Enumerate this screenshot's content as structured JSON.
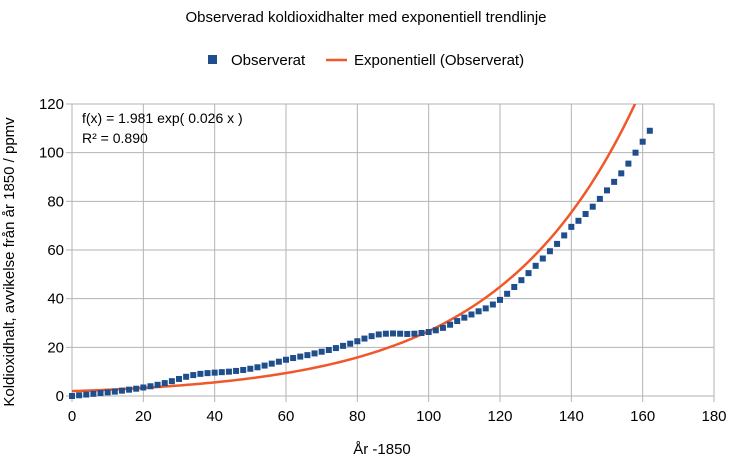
{
  "chart_data": {
    "type": "scatter",
    "title": "Observerad koldioxidhalter med exponentiell trendlinje",
    "xlabel": "År -1850",
    "ylabel": "Koldioxidhalt, avvikelse från år 1850 / ppmv",
    "xlim": [
      0,
      180
    ],
    "ylim": [
      0,
      120
    ],
    "x_ticks": [
      "0",
      "20",
      "40",
      "60",
      "80",
      "100",
      "120",
      "140",
      "160",
      "180"
    ],
    "y_ticks": [
      "0",
      "20",
      "40",
      "60",
      "80",
      "100",
      "120"
    ],
    "grid": true,
    "legend_position": "top",
    "series": [
      {
        "name": "Observerat",
        "kind": "scatter",
        "marker": "square",
        "color": "#1f4e8c",
        "points": [
          [
            0,
            0.0
          ],
          [
            2,
            0.3
          ],
          [
            4,
            0.6
          ],
          [
            6,
            0.9
          ],
          [
            8,
            1.2
          ],
          [
            10,
            1.5
          ],
          [
            12,
            1.8
          ],
          [
            14,
            2.2
          ],
          [
            16,
            2.6
          ],
          [
            18,
            3.0
          ],
          [
            20,
            3.5
          ],
          [
            22,
            4.0
          ],
          [
            24,
            4.6
          ],
          [
            26,
            5.3
          ],
          [
            28,
            6.1
          ],
          [
            30,
            7.0
          ],
          [
            32,
            7.9
          ],
          [
            34,
            8.6
          ],
          [
            36,
            9.1
          ],
          [
            38,
            9.4
          ],
          [
            40,
            9.6
          ],
          [
            42,
            9.8
          ],
          [
            44,
            10.0
          ],
          [
            46,
            10.3
          ],
          [
            48,
            10.7
          ],
          [
            50,
            11.2
          ],
          [
            52,
            11.8
          ],
          [
            54,
            12.5
          ],
          [
            56,
            13.3
          ],
          [
            58,
            14.1
          ],
          [
            60,
            14.9
          ],
          [
            62,
            15.6
          ],
          [
            64,
            16.2
          ],
          [
            66,
            16.8
          ],
          [
            68,
            17.5
          ],
          [
            70,
            18.2
          ],
          [
            72,
            18.9
          ],
          [
            74,
            19.7
          ],
          [
            76,
            20.6
          ],
          [
            78,
            21.5
          ],
          [
            80,
            22.5
          ],
          [
            82,
            23.6
          ],
          [
            84,
            24.6
          ],
          [
            86,
            25.3
          ],
          [
            88,
            25.6
          ],
          [
            90,
            25.7
          ],
          [
            92,
            25.6
          ],
          [
            94,
            25.5
          ],
          [
            96,
            25.6
          ],
          [
            98,
            25.9
          ],
          [
            100,
            26.3
          ],
          [
            102,
            27.0
          ],
          [
            104,
            28.0
          ],
          [
            106,
            29.3
          ],
          [
            108,
            30.8
          ],
          [
            110,
            32.2
          ],
          [
            112,
            33.5
          ],
          [
            114,
            34.8
          ],
          [
            116,
            36.0
          ],
          [
            118,
            37.6
          ],
          [
            120,
            39.5
          ],
          [
            122,
            42.0
          ],
          [
            124,
            44.8
          ],
          [
            126,
            47.6
          ],
          [
            128,
            50.5
          ],
          [
            130,
            53.5
          ],
          [
            132,
            56.5
          ],
          [
            134,
            59.5
          ],
          [
            136,
            62.5
          ],
          [
            138,
            66.0
          ],
          [
            140,
            69.5
          ],
          [
            142,
            72.0
          ],
          [
            144,
            74.8
          ],
          [
            146,
            77.8
          ],
          [
            148,
            81.0
          ],
          [
            150,
            84.5
          ],
          [
            152,
            88.0
          ],
          [
            154,
            91.5
          ],
          [
            156,
            95.5
          ],
          [
            158,
            100.0
          ],
          [
            160,
            104.5
          ],
          [
            162,
            109.0
          ]
        ]
      },
      {
        "name": "Exponentiell (Observerat)",
        "kind": "line",
        "color": "#f0582b",
        "formula": {
          "a": 1.981,
          "b": 0.026
        }
      }
    ],
    "annotations": [
      "f(x) = 1.981 exp( 0.026 x )",
      "R² = 0.890"
    ]
  }
}
